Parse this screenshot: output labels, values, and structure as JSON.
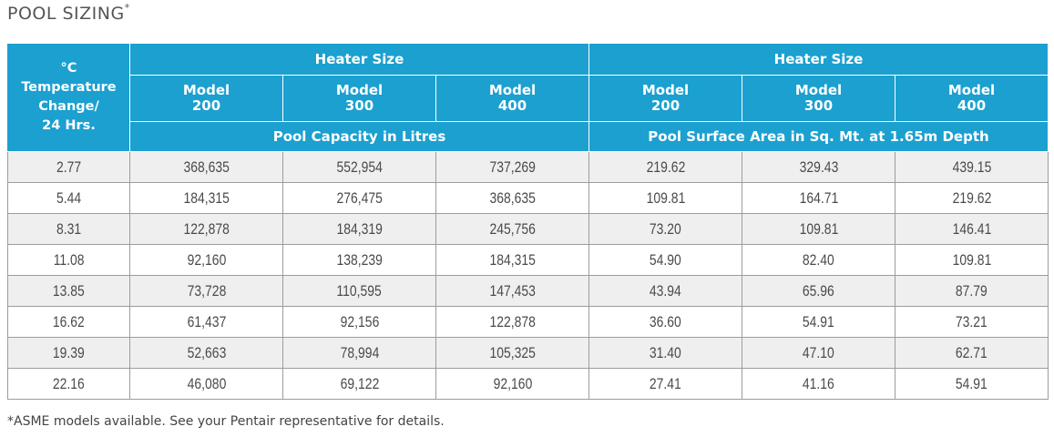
{
  "title": "POOL SIZING",
  "title_mark": "*",
  "header": {
    "corner": [
      "°C",
      "Temperature",
      "Change/",
      "24 Hrs."
    ],
    "group_left": "Heater Size",
    "group_right": "Heater Size",
    "models": [
      [
        "Model",
        "200"
      ],
      [
        "Model",
        "300"
      ],
      [
        "Model",
        "400"
      ],
      [
        "Model",
        "200"
      ],
      [
        "Model",
        "300"
      ],
      [
        "Model",
        "400"
      ]
    ],
    "sub_left": "Pool Capacity in Litres",
    "sub_right": "Pool Surface Area in Sq. Mt. at 1.65m Depth"
  },
  "rows": [
    [
      "2.77",
      "368,635",
      "552,954",
      "737,269",
      "219.62",
      "329.43",
      "439.15"
    ],
    [
      "5.44",
      "184,315",
      "276,475",
      "368,635",
      "109.81",
      "164.71",
      "219.62"
    ],
    [
      "8.31",
      "122,878",
      "184,319",
      "245,756",
      "73.20",
      "109.81",
      "146.41"
    ],
    [
      "11.08",
      "92,160",
      "138,239",
      "184,315",
      "54.90",
      "82.40",
      "109.81"
    ],
    [
      "13.85",
      "73,728",
      "110,595",
      "147,453",
      "43.94",
      "65.96",
      "87.79"
    ],
    [
      "16.62",
      "61,437",
      "92,156",
      "122,878",
      "36.60",
      "54.91",
      "73.21"
    ],
    [
      "19.39",
      "52,663",
      "78,994",
      "105,325",
      "31.40",
      "47.10",
      "62.71"
    ],
    [
      "22.16",
      "46,080",
      "69,122",
      "92,160",
      "27.41",
      "41.16",
      "54.91"
    ]
  ],
  "footnote": "*ASME models available. See your Pentair representative for details.",
  "colors": {
    "header_bg": "#1ba0d0",
    "row_alt": "#efefef"
  }
}
